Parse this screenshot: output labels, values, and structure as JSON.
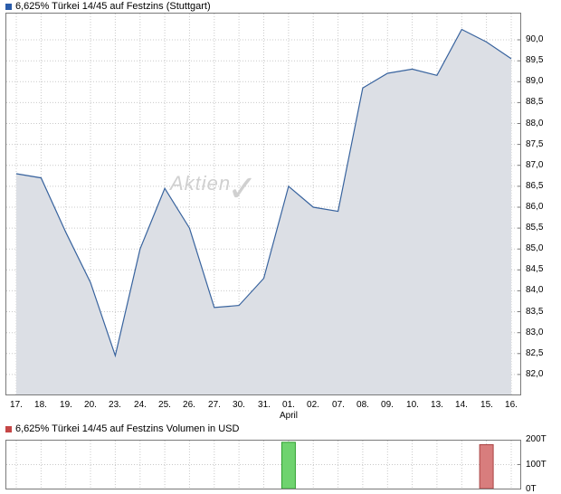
{
  "colors": {
    "grid": "#c9c9c9",
    "frame": "#7a7a7a",
    "axis_text": "#000000",
    "watermark": "#d0d0d0",
    "price_swatch": "#2a5caa",
    "volume_swatch": "#c54646",
    "bar_up": {
      "fill": "#6fd36f",
      "stroke": "#2f9e2f"
    },
    "bar_down": {
      "fill": "#d87d7d",
      "stroke": "#aa4444"
    }
  },
  "watermark": {
    "text": "Aktien",
    "check_icon": "✓"
  },
  "chart_data": [
    {
      "id": "price",
      "type": "area",
      "title": "6,625% Türkei 14/45 auf Festzins (Stuttgart)",
      "categories": [
        "17.",
        "18.",
        "19.",
        "20.",
        "23.",
        "24.",
        "25.",
        "26.",
        "27.",
        "30.",
        "31.",
        "01.",
        "02.",
        "07.",
        "08.",
        "09.",
        "10.",
        "13.",
        "14.",
        "15.",
        "16."
      ],
      "values": [
        86.8,
        86.7,
        85.4,
        84.2,
        82.45,
        85.0,
        86.45,
        85.5,
        83.6,
        83.65,
        84.3,
        86.5,
        86.0,
        85.9,
        88.85,
        89.2,
        89.3,
        89.15,
        90.25,
        89.95,
        89.55
      ],
      "ylim": [
        81.5,
        90.65
      ],
      "yticks": [
        {
          "value": 90.0,
          "label": "90,0"
        },
        {
          "value": 89.5,
          "label": "89,5"
        },
        {
          "value": 89.0,
          "label": "89,0"
        },
        {
          "value": 88.5,
          "label": "88,5"
        },
        {
          "value": 88.0,
          "label": "88,0"
        },
        {
          "value": 87.5,
          "label": "87,5"
        },
        {
          "value": 87.0,
          "label": "87,0"
        },
        {
          "value": 86.5,
          "label": "86,5"
        },
        {
          "value": 86.0,
          "label": "86,0"
        },
        {
          "value": 85.5,
          "label": "85,5"
        },
        {
          "value": 85.0,
          "label": "85,0"
        },
        {
          "value": 84.5,
          "label": "84,5"
        },
        {
          "value": 84.0,
          "label": "84,0"
        },
        {
          "value": 83.5,
          "label": "83,5"
        },
        {
          "value": 83.0,
          "label": "83,0"
        },
        {
          "value": 82.5,
          "label": "82,5"
        },
        {
          "value": 82.0,
          "label": "82,0"
        }
      ],
      "month_label": "April",
      "month_index": 11,
      "line_color": "#38639e",
      "fill_color": "#dcdfe5",
      "grid": true,
      "legend_position": "top-left"
    },
    {
      "id": "volume",
      "type": "bar",
      "title": "6,625% Türkei 14/45 auf Festzins Volumen in USD",
      "unit": "T",
      "categories": [
        "17.",
        "18.",
        "19.",
        "20.",
        "23.",
        "24.",
        "25.",
        "26.",
        "27.",
        "30.",
        "31.",
        "01.",
        "02.",
        "07.",
        "08.",
        "09.",
        "10.",
        "13.",
        "14.",
        "15.",
        "16."
      ],
      "values": [
        0,
        0,
        0,
        0,
        0,
        0,
        0,
        0,
        0,
        0,
        0,
        190,
        0,
        0,
        0,
        0,
        0,
        0,
        0,
        180,
        0
      ],
      "directions": [
        null,
        null,
        null,
        null,
        null,
        null,
        null,
        null,
        null,
        null,
        null,
        "up",
        null,
        null,
        null,
        null,
        null,
        null,
        null,
        "down",
        null
      ],
      "ylim": [
        0,
        200
      ],
      "yticks": [
        {
          "value": 200,
          "label": "200T"
        },
        {
          "value": 100,
          "label": "100T"
        },
        {
          "value": 0,
          "label": "0T"
        }
      ],
      "grid": true
    }
  ]
}
